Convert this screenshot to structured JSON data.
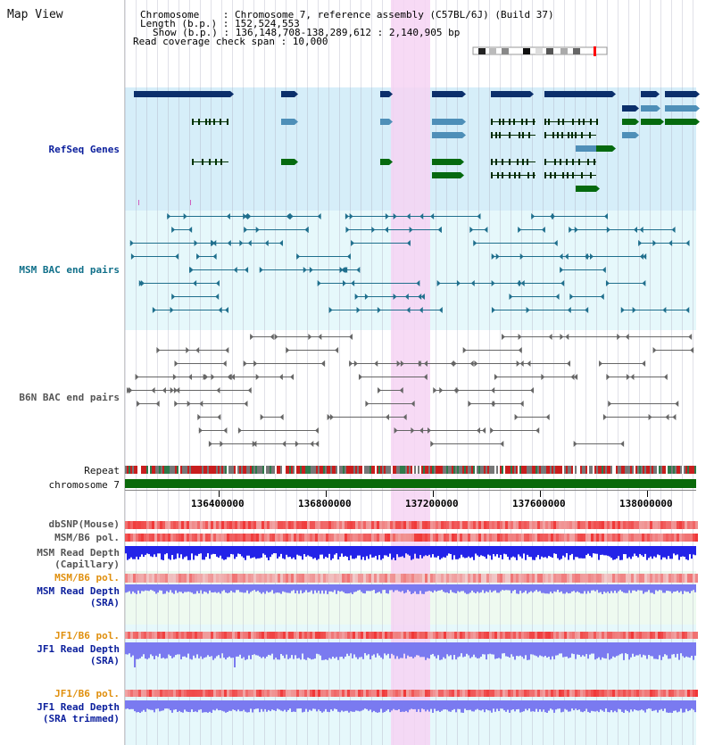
{
  "header": {
    "title": "Map View",
    "info_lines": [
      "Chromosome    : Chromosome 7, reference assembly (C57BL/6J) (Build 37)",
      "Length (b.p.) : 152,524,553",
      "Show (b.p.) : 136,148,708-138,289,612 : 2,140,905 bp",
      "Read coverage check span : 10,000"
    ]
  },
  "tracks": {
    "refseq": "RefSeq Genes",
    "msm_bac": "MSM BAC end pairs",
    "b6n_bac": "B6N BAC end pairs",
    "repeat": "Repeat",
    "chromosome": "chromosome 7",
    "dbsnp": "dbSNP(Mouse)",
    "msm_b6_pol": "MSM/B6 pol.",
    "msm_read_depth_cap_1": "MSM Read Depth",
    "msm_read_depth_cap_2": "(Capillary)",
    "msm_b6_pol_2": "MSM/B6 pol.",
    "msm_read_depth_sra_1": "MSM Read Depth",
    "msm_read_depth_sra_2": "(SRA)",
    "jf1_b6_pol": "JF1/B6 pol.",
    "jf1_read_depth_1": "JF1 Read Depth",
    "jf1_read_depth_2": "(SRA)",
    "jf1_b6_pol_2": "JF1/B6 pol.",
    "jf1_trim_1": "JF1 Read Depth",
    "jf1_trim_2": "(SRA trimmed)"
  },
  "axis": {
    "ticks": [
      "136400000",
      "136800000",
      "137200000",
      "137600000",
      "138000000"
    ]
  },
  "colors": {
    "refseq_bg": "#d6eef9",
    "msm_bg": "#e6f8fb",
    "gene_dark": "#0b2f6b",
    "gene_mid": "#4e8fb8",
    "gene_green": "#056a0f",
    "bac_teal": "#1f6f8d",
    "bac_grey": "#666666",
    "highlight": "#f6d3f3",
    "chrom_green": "#0a6a0a",
    "depth_blue": "#2323e8",
    "depth_light": "#7a7af0"
  }
}
